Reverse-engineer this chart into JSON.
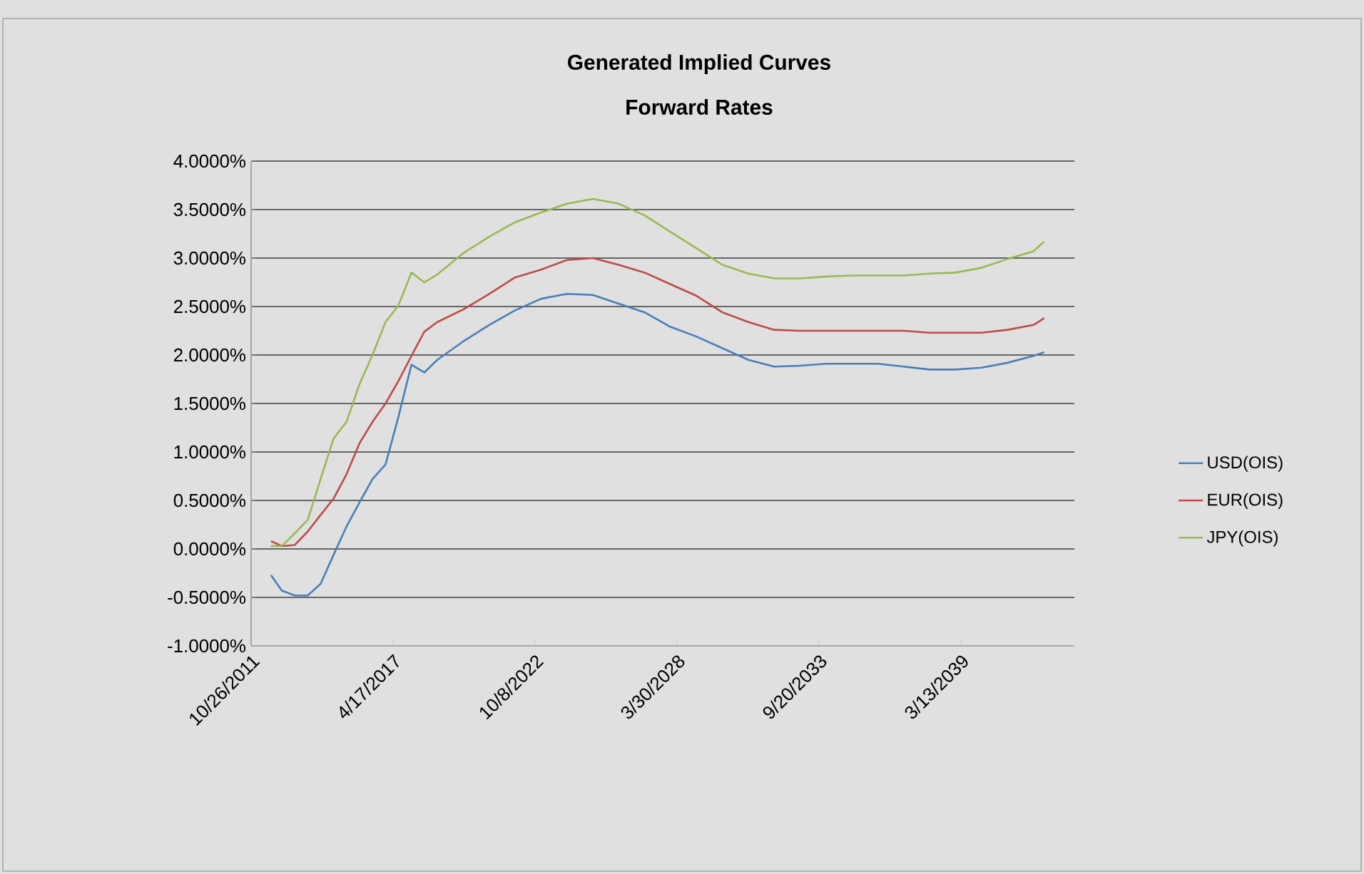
{
  "chart_data": {
    "type": "line",
    "title": "Generated Implied Curves",
    "subtitle": "Forward Rates",
    "x": [
      "2012-08",
      "2013-01",
      "2013-07",
      "2014-01",
      "2014-07",
      "2015-01",
      "2015-07",
      "2016-01",
      "2016-07",
      "2017-01",
      "2017-07",
      "2018-01",
      "2018-07",
      "2019-01",
      "2020-01",
      "2021-01",
      "2022-01",
      "2023-01",
      "2024-01",
      "2025-01",
      "2026-01",
      "2027-01",
      "2028-01",
      "2029-01",
      "2030-01",
      "2031-01",
      "2032-01",
      "2033-01",
      "2034-01",
      "2035-01",
      "2036-01",
      "2037-01",
      "2038-01",
      "2039-01",
      "2040-01",
      "2041-01",
      "2042-01",
      "2042-06"
    ],
    "series": [
      {
        "name": "USD(OIS)",
        "color": "#4a7ebb",
        "values": [
          -0.27,
          -0.43,
          -0.48,
          -0.48,
          -0.36,
          -0.06,
          0.23,
          0.48,
          0.72,
          0.87,
          1.36,
          1.9,
          1.82,
          1.95,
          2.14,
          2.31,
          2.46,
          2.58,
          2.63,
          2.62,
          2.53,
          2.44,
          2.29,
          2.19,
          2.07,
          1.95,
          1.88,
          1.89,
          1.91,
          1.91,
          1.91,
          1.88,
          1.85,
          1.85,
          1.87,
          1.92,
          1.99,
          2.03
        ]
      },
      {
        "name": "EUR(OIS)",
        "color": "#be4b48",
        "values": [
          0.08,
          0.03,
          0.04,
          0.18,
          0.35,
          0.52,
          0.77,
          1.09,
          1.31,
          1.5,
          1.73,
          1.99,
          2.24,
          2.34,
          2.47,
          2.63,
          2.8,
          2.88,
          2.98,
          3.0,
          2.93,
          2.85,
          2.73,
          2.61,
          2.44,
          2.34,
          2.26,
          2.25,
          2.25,
          2.25,
          2.25,
          2.25,
          2.23,
          2.23,
          2.23,
          2.26,
          2.31,
          2.38
        ]
      },
      {
        "name": "JPY(OIS)",
        "color": "#98b954",
        "values": [
          0.03,
          0.03,
          0.16,
          0.3,
          0.72,
          1.14,
          1.31,
          1.7,
          2.0,
          2.34,
          2.51,
          2.85,
          2.75,
          2.83,
          3.05,
          3.22,
          3.37,
          3.47,
          3.56,
          3.61,
          3.56,
          3.44,
          3.27,
          3.1,
          2.93,
          2.84,
          2.79,
          2.79,
          2.81,
          2.82,
          2.82,
          2.82,
          2.84,
          2.85,
          2.9,
          2.99,
          3.07,
          3.17
        ]
      }
    ],
    "xlim": [
      "2011-10-26",
      "2043-08-01"
    ],
    "xticks": [
      {
        "value": "2011-10-26",
        "label": "10/26/2011"
      },
      {
        "value": "2017-04-17",
        "label": "4/17/2017"
      },
      {
        "value": "2022-10-08",
        "label": "10/8/2022"
      },
      {
        "value": "2028-03-30",
        "label": "3/30/2028"
      },
      {
        "value": "2033-09-20",
        "label": "9/20/2033"
      },
      {
        "value": "2039-03-13",
        "label": "3/13/2039"
      }
    ],
    "ylim": [
      -1,
      4
    ],
    "yticks": [
      {
        "value": -1,
        "label": "-1.0000%"
      },
      {
        "value": -0.5,
        "label": "-0.5000%"
      },
      {
        "value": 0,
        "label": "0.0000%"
      },
      {
        "value": 0.5,
        "label": "0.5000%"
      },
      {
        "value": 1,
        "label": "1.0000%"
      },
      {
        "value": 1.5,
        "label": "1.5000%"
      },
      {
        "value": 2,
        "label": "2.0000%"
      },
      {
        "value": 2.5,
        "label": "2.5000%"
      },
      {
        "value": 3,
        "label": "3.0000%"
      },
      {
        "value": 3.5,
        "label": "3.5000%"
      },
      {
        "value": 4,
        "label": "4.0000%"
      }
    ],
    "grid": "y",
    "legend": "right",
    "marker": "none",
    "line_style": "solid"
  }
}
